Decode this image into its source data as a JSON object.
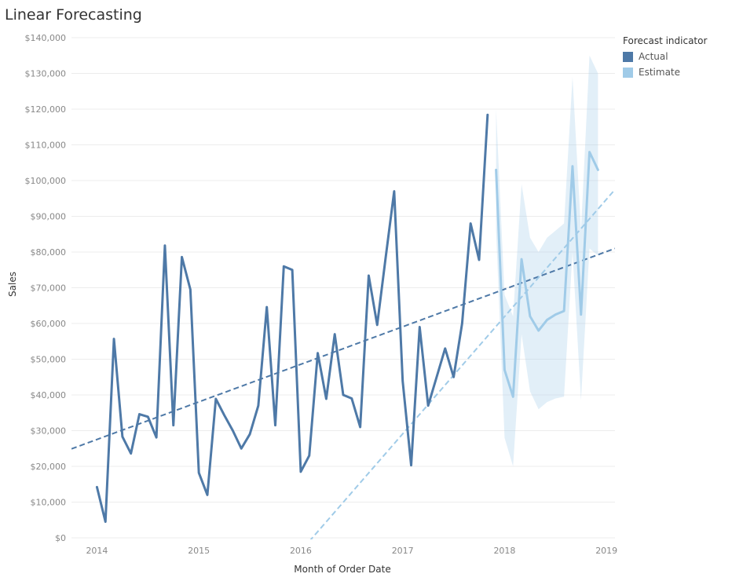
{
  "chart_data": {
    "type": "line",
    "title": "Linear Forecasting",
    "xlabel": "Month of Order Date",
    "ylabel": "Sales",
    "ylim": [
      0,
      140000
    ],
    "xlim": [
      "2013-10",
      "2019-02"
    ],
    "grid": true,
    "legend_placement": "top-right",
    "legend_title": "Forecast indicator",
    "x_ticks": [
      "2014",
      "2015",
      "2016",
      "2017",
      "2018",
      "2019"
    ],
    "y_ticks": [
      "$0",
      "$10,000",
      "$20,000",
      "$30,000",
      "$40,000",
      "$50,000",
      "$60,000",
      "$70,000",
      "$80,000",
      "$90,000",
      "$100,000",
      "$110,000",
      "$120,000",
      "$130,000",
      "$140,000"
    ],
    "series": [
      {
        "name": "Actual",
        "color": "#4e79a7",
        "x": [
          "2014-01",
          "2014-02",
          "2014-03",
          "2014-04",
          "2014-05",
          "2014-06",
          "2014-07",
          "2014-08",
          "2014-09",
          "2014-10",
          "2014-11",
          "2014-12",
          "2015-01",
          "2015-02",
          "2015-03",
          "2015-04",
          "2015-05",
          "2015-06",
          "2015-07",
          "2015-08",
          "2015-09",
          "2015-10",
          "2015-11",
          "2015-12",
          "2016-01",
          "2016-02",
          "2016-03",
          "2016-04",
          "2016-05",
          "2016-06",
          "2016-07",
          "2016-08",
          "2016-09",
          "2016-10",
          "2016-11",
          "2016-12",
          "2017-01",
          "2017-02",
          "2017-03",
          "2017-04",
          "2017-05",
          "2017-06",
          "2017-07",
          "2017-08",
          "2017-09",
          "2017-10",
          "2017-11"
        ],
        "values": [
          14200,
          4500,
          55700,
          28300,
          23600,
          34600,
          33900,
          28100,
          81800,
          31500,
          78600,
          69500,
          18200,
          12000,
          38900,
          34300,
          30000,
          25000,
          29000,
          37000,
          64600,
          31500,
          76000,
          75000,
          18500,
          23000,
          51700,
          38900,
          57000,
          40000,
          39000,
          31000,
          73400,
          59600,
          78500,
          97000,
          43900,
          20300,
          59000,
          37000,
          45000,
          53000,
          45000,
          60000,
          88000,
          77800,
          118400
        ]
      },
      {
        "name": "Estimate",
        "color": "#a0cbe8",
        "x": [
          "2017-12",
          "2018-01",
          "2018-02",
          "2018-03",
          "2018-04",
          "2018-05",
          "2018-06",
          "2018-07",
          "2018-08",
          "2018-09",
          "2018-10",
          "2018-11",
          "2018-12"
        ],
        "values": [
          103000,
          47000,
          39500,
          78000,
          62000,
          58000,
          61000,
          62500,
          63500,
          104000,
          62500,
          108000,
          103000
        ],
        "band_upper": [
          120000,
          68000,
          62000,
          99000,
          84000,
          80000,
          84000,
          86000,
          88000,
          129000,
          86000,
          135000,
          130000
        ],
        "band_lower": [
          86000,
          28000,
          20000,
          57000,
          41000,
          36000,
          38000,
          39000,
          39500,
          80000,
          38500,
          81000,
          79000
        ]
      }
    ],
    "trend_lines": [
      {
        "of": "Actual",
        "color": "#4e79a7",
        "style": "dashed",
        "start": {
          "x": "2013-10",
          "y": 24900
        },
        "end": {
          "x": "2019-02",
          "y": 81000
        }
      },
      {
        "of": "Estimate",
        "color": "#a0cbe8",
        "style": "dashed",
        "start": {
          "x": "2016-02",
          "y": -1000
        },
        "end": {
          "x": "2019-02",
          "y": 97500
        }
      }
    ]
  }
}
